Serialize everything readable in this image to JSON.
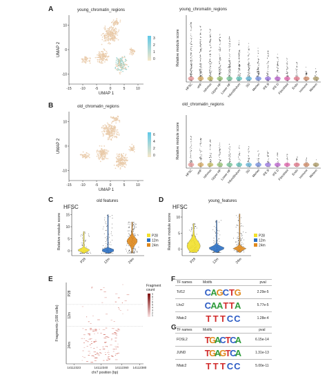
{
  "panels": {
    "A": {
      "letter": "A",
      "umap_title": "young_chromatin_regions",
      "umap_xlabel": "UMAP 1",
      "umap_ylabel": "UMAP 2",
      "umap_xticks": [
        "-15",
        "-10",
        "-5",
        "0",
        "5",
        "10"
      ],
      "umap_yticks": [
        "10",
        "0",
        "-10"
      ],
      "colorbar_ticks": [
        "3",
        "2",
        "1",
        "0"
      ],
      "violin_title": "young_chromatin_regions",
      "violin_ylabel": "Relative module score"
    },
    "B": {
      "letter": "B",
      "umap_title": "old_chromatin_regions",
      "umap_xlabel": "UMAP 1",
      "umap_ylabel": "UMAP 2",
      "umap_xticks": [
        "-15",
        "-10",
        "-5",
        "0",
        "5",
        "10"
      ],
      "umap_yticks": [
        "10",
        "0",
        "-10"
      ],
      "colorbar_ticks": [
        "6",
        "4",
        "2",
        "0"
      ],
      "violin_title": "old_chromatin_regions",
      "violin_ylabel": "Relative module score"
    },
    "C": {
      "letter": "C",
      "title": "old features",
      "celltype": "HFSC",
      "ylabel": "Relative module score",
      "yticks": [
        "15",
        "10",
        "5",
        "0"
      ],
      "categories": [
        "P28",
        "12m",
        "24m"
      ],
      "legend": [
        "P28",
        "12m",
        "24m"
      ]
    },
    "D": {
      "letter": "D",
      "title": "young_features",
      "celltype": "HFSC",
      "ylabel": "Relative module score",
      "yticks": [
        "10",
        "5",
        "0"
      ],
      "categories": [
        "P28",
        "12m",
        "24m"
      ],
      "legend": [
        "P28",
        "12m",
        "24m"
      ]
    },
    "E": {
      "letter": "E",
      "ylabel": "Fragments (100 cells)",
      "xlabel": "chr7 position (bp)",
      "xticks": [
        "14112323",
        "14112340",
        "14112360",
        "14112380"
      ],
      "groups": [
        "P28",
        "12m",
        "24m"
      ],
      "legend_title": "Fragment count",
      "legend_ticks": [
        "9",
        "8",
        "7",
        "6",
        "5",
        "4",
        "3",
        "2",
        "1"
      ]
    },
    "F": {
      "letter": "F",
      "headers": [
        "TF names",
        "Motifs",
        "pval"
      ],
      "rows": [
        {
          "tf": "Tcf12",
          "motif": "CAGCTG",
          "pval": "2.29e-5"
        },
        {
          "tf": "Lhx2",
          "motif": "CAATTA",
          "pval": "5.77e-5"
        },
        {
          "tf": "Nfatc2",
          "motif": "TTTCC",
          "pval": "1.28e-4"
        }
      ]
    },
    "G": {
      "letter": "G",
      "headers": [
        "TF names",
        "Motifs",
        "pval"
      ],
      "rows": [
        {
          "tf": "FOSL2",
          "motif": "TGACTCA",
          "pval": "6.15e-14"
        },
        {
          "tf": "JUND",
          "motif": "TGAGTCA",
          "pval": "1.31e-13"
        },
        {
          "tf": "Nfatc2",
          "motif": "TTTCC",
          "pval": "5.00e-11"
        }
      ]
    }
  },
  "violin_categories": [
    "HFSC",
    "uHF",
    "Isthmus",
    "Upper HF",
    "Lower HF",
    "Infundibulum",
    "SG",
    "Merkel",
    "IFE B",
    "IFE D",
    "Fibroblast",
    "Endo",
    "Immune",
    "Melano"
  ],
  "colors": {
    "p28": "#f2e02c",
    "m12": "#2b6fc4",
    "m24": "#e08a1e",
    "colorbar_top": "#5ec8e8",
    "colorbar_bottom": "#f6e7c8",
    "umap_points": "#e8c9a8",
    "umap_hi": "#8fd0c9",
    "frag": "#c0392b"
  },
  "chart_data": [
    {
      "type": "scatter",
      "title": "young_chromatin_regions",
      "xlabel": "UMAP 1",
      "ylabel": "UMAP 2",
      "xlim": [
        -15,
        12
      ],
      "ylim": [
        -14,
        14
      ],
      "colorbar_range": [
        0,
        3
      ]
    },
    {
      "type": "scatter",
      "title": "old_chromatin_regions",
      "xlabel": "UMAP 1",
      "ylabel": "UMAP 2",
      "xlim": [
        -15,
        12
      ],
      "ylim": [
        -14,
        14
      ],
      "colorbar_range": [
        0,
        6
      ]
    },
    {
      "type": "violin",
      "title": "old features",
      "categories": [
        "P28",
        "12m",
        "24m"
      ],
      "ylabel": "Relative module score",
      "ylim": [
        -2,
        18
      ],
      "medians": [
        0.3,
        0.2,
        4.0
      ]
    },
    {
      "type": "violin",
      "title": "young_features",
      "categories": [
        "P28",
        "12m",
        "24m"
      ],
      "ylabel": "Relative module score",
      "ylim": [
        -2,
        13
      ],
      "medians": [
        1.5,
        0.5,
        0.3
      ]
    }
  ]
}
